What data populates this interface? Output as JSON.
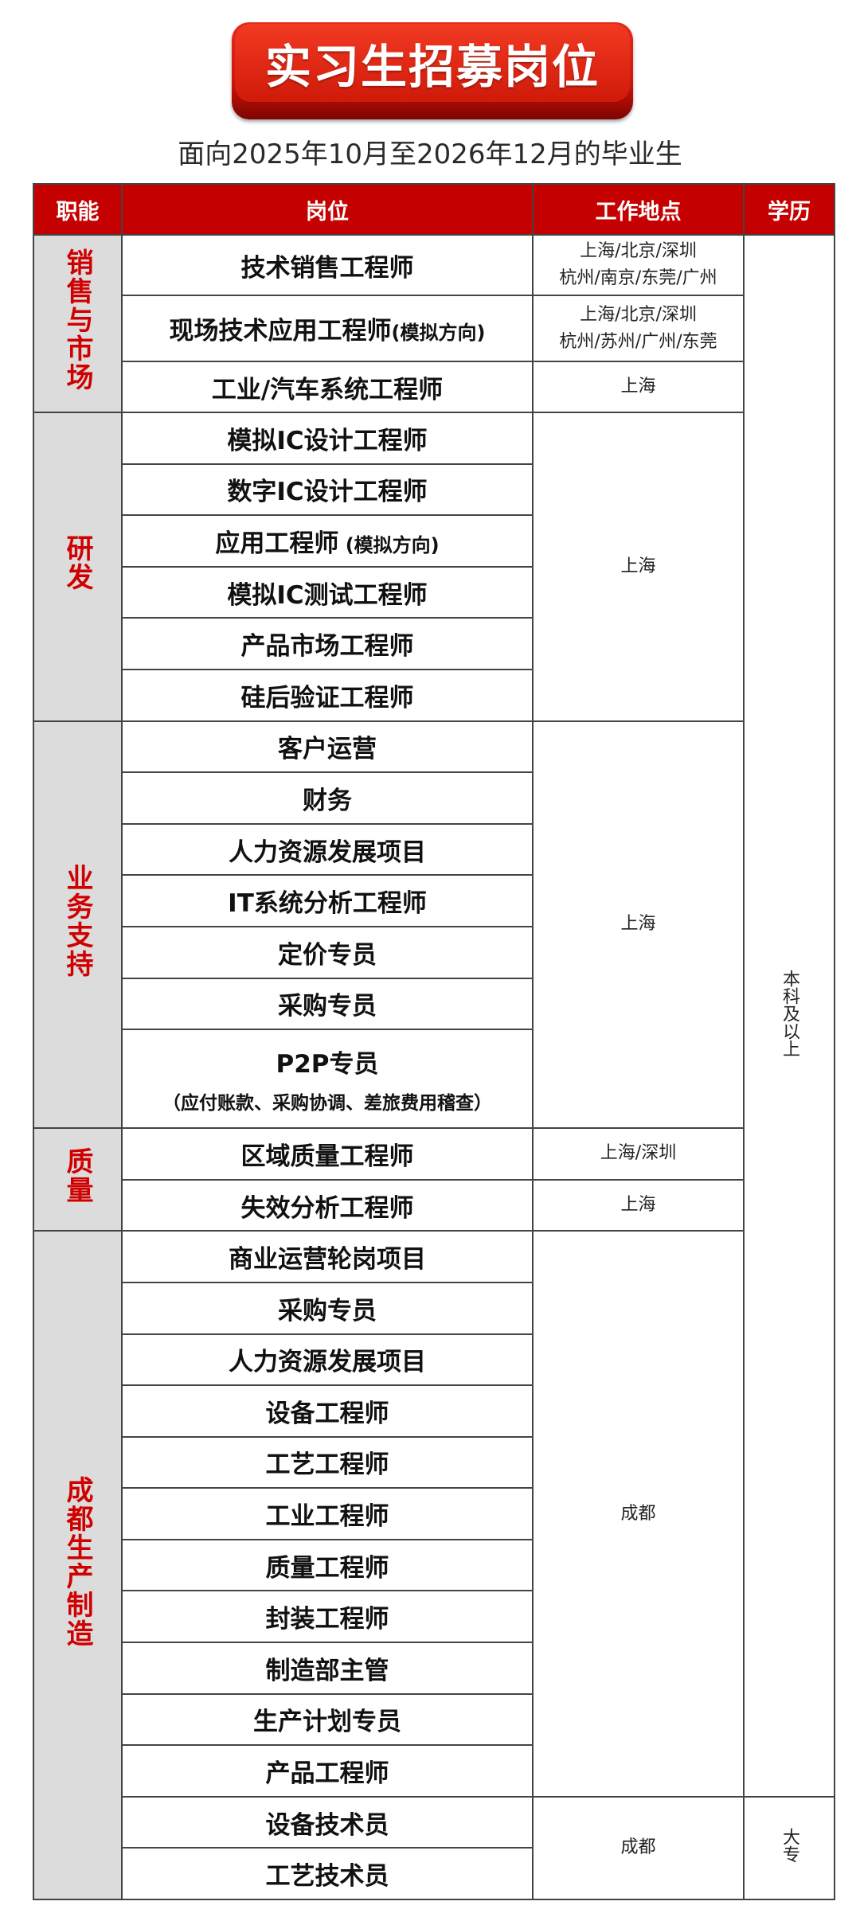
{
  "title": "实习生招募岗位",
  "subtitle": "面向2025年10月至2026年12月的毕业生",
  "colors": {
    "header_bg": "#c40000",
    "category_text": "#d00000",
    "category_bg": "#dcdcdc"
  },
  "headers": [
    "职能",
    "岗位",
    "工作地点",
    "学历"
  ],
  "categories": [
    "销售与市场",
    "研发",
    "业务支持",
    "质量",
    "成都生产制造"
  ],
  "rows": [
    {
      "cat": 0,
      "cat_span": 3,
      "position": "技术销售工程师",
      "location": [
        "上海/北京/深圳",
        "杭州/南京/东莞/广州"
      ],
      "loc_span": 1,
      "edu": "本科及以上",
      "edu_span": 29
    },
    {
      "position": "现场技术应用工程师",
      "suffix": "(模拟方向)",
      "location": [
        "上海/北京/深圳",
        "杭州/苏州/广州/东莞"
      ],
      "loc_span": 1
    },
    {
      "position": "工业/汽车系统工程师",
      "location": [
        "上海"
      ],
      "loc_span": 1
    },
    {
      "cat": 1,
      "cat_span": 6,
      "position": "模拟IC设计工程师",
      "location": [
        "上海"
      ],
      "loc_span": 6
    },
    {
      "position": "数字IC设计工程师"
    },
    {
      "position": "应用工程师",
      "suffix": " (模拟方向)"
    },
    {
      "position": "模拟IC测试工程师"
    },
    {
      "position": "产品市场工程师"
    },
    {
      "position": "硅后验证工程师"
    },
    {
      "cat": 2,
      "cat_span": 7,
      "position": "客户运营",
      "location": [
        "上海"
      ],
      "loc_span": 7
    },
    {
      "position": "财务"
    },
    {
      "position": "人力资源发展项目"
    },
    {
      "position": "IT系统分析工程师"
    },
    {
      "position": "定价专员"
    },
    {
      "position": "采购专员"
    },
    {
      "position": "P2P专员",
      "sub": "（应付账款、采购协调、差旅费用稽查）"
    },
    {
      "cat": 3,
      "cat_span": 2,
      "position": "区域质量工程师",
      "location": [
        "上海/深圳"
      ],
      "loc_span": 1
    },
    {
      "position": "失效分析工程师",
      "location": [
        "上海"
      ],
      "loc_span": 1
    },
    {
      "cat": 4,
      "cat_span": 13,
      "position": "商业运营轮岗项目",
      "location": [
        "成都"
      ],
      "loc_span": 11
    },
    {
      "position": "采购专员"
    },
    {
      "position": "人力资源发展项目"
    },
    {
      "position": "设备工程师"
    },
    {
      "position": "工艺工程师"
    },
    {
      "position": "工业工程师"
    },
    {
      "position": "质量工程师"
    },
    {
      "position": "封装工程师"
    },
    {
      "position": "制造部主管"
    },
    {
      "position": "生产计划专员"
    },
    {
      "position": "产品工程师"
    },
    {
      "position": "设备技术员",
      "location": [
        "成都"
      ],
      "loc_span": 2,
      "edu": "大专",
      "edu_span": 2
    },
    {
      "position": "工艺技术员"
    }
  ]
}
